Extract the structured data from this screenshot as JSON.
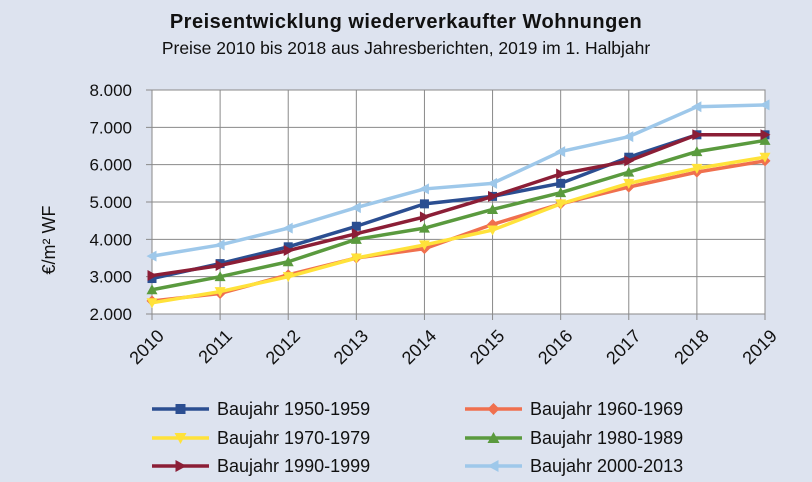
{
  "chart_data": {
    "type": "line",
    "title": "Preisentwicklung wiederverkaufter Wohnungen",
    "subtitle": "Preise 2010 bis 2018 aus Jahresberichten, 2019 im 1. Halbjahr",
    "ylabel": "€/m² WF",
    "xlabel": "",
    "x": [
      "2010",
      "2011",
      "2012",
      "2013",
      "2014",
      "2015",
      "2016",
      "2017",
      "2018",
      "2019"
    ],
    "ylim": [
      2000,
      8000
    ],
    "yticks": [
      2000,
      3000,
      4000,
      5000,
      6000,
      7000,
      8000
    ],
    "ytick_labels": [
      "2.000",
      "3.000",
      "4.000",
      "5.000",
      "6.000",
      "7.000",
      "8.000"
    ],
    "grid": true,
    "legend_position": "bottom",
    "series": [
      {
        "name": "Baujahr 1950-1959",
        "color": "#2b4e91",
        "marker": "square",
        "values": [
          2950,
          3350,
          3800,
          4350,
          4950,
          5150,
          5500,
          6200,
          6800,
          6800
        ]
      },
      {
        "name": "Baujahr 1960-1969",
        "color": "#f0704e",
        "marker": "diamond",
        "values": [
          2350,
          2550,
          3050,
          3500,
          3750,
          4400,
          4950,
          5400,
          5800,
          6100
        ]
      },
      {
        "name": "Baujahr 1970-1979",
        "color": "#ffe23a",
        "marker": "triangle-down",
        "values": [
          2300,
          2600,
          3000,
          3500,
          3850,
          4250,
          4950,
          5500,
          5900,
          6200
        ]
      },
      {
        "name": "Baujahr 1980-1989",
        "color": "#5a9a3e",
        "marker": "triangle-up",
        "values": [
          2650,
          3000,
          3400,
          4000,
          4300,
          4800,
          5250,
          5800,
          6350,
          6650
        ]
      },
      {
        "name": "Baujahr 1990-1999",
        "color": "#8b1e36",
        "marker": "triangle-right",
        "values": [
          3030,
          3300,
          3700,
          4150,
          4600,
          5150,
          5750,
          6100,
          6800,
          6800
        ]
      },
      {
        "name": "Baujahr 2000-2013",
        "color": "#9ec8ea",
        "marker": "triangle-left",
        "values": [
          3550,
          3850,
          4300,
          4850,
          5350,
          5500,
          6350,
          6750,
          7550,
          7600
        ]
      }
    ]
  }
}
